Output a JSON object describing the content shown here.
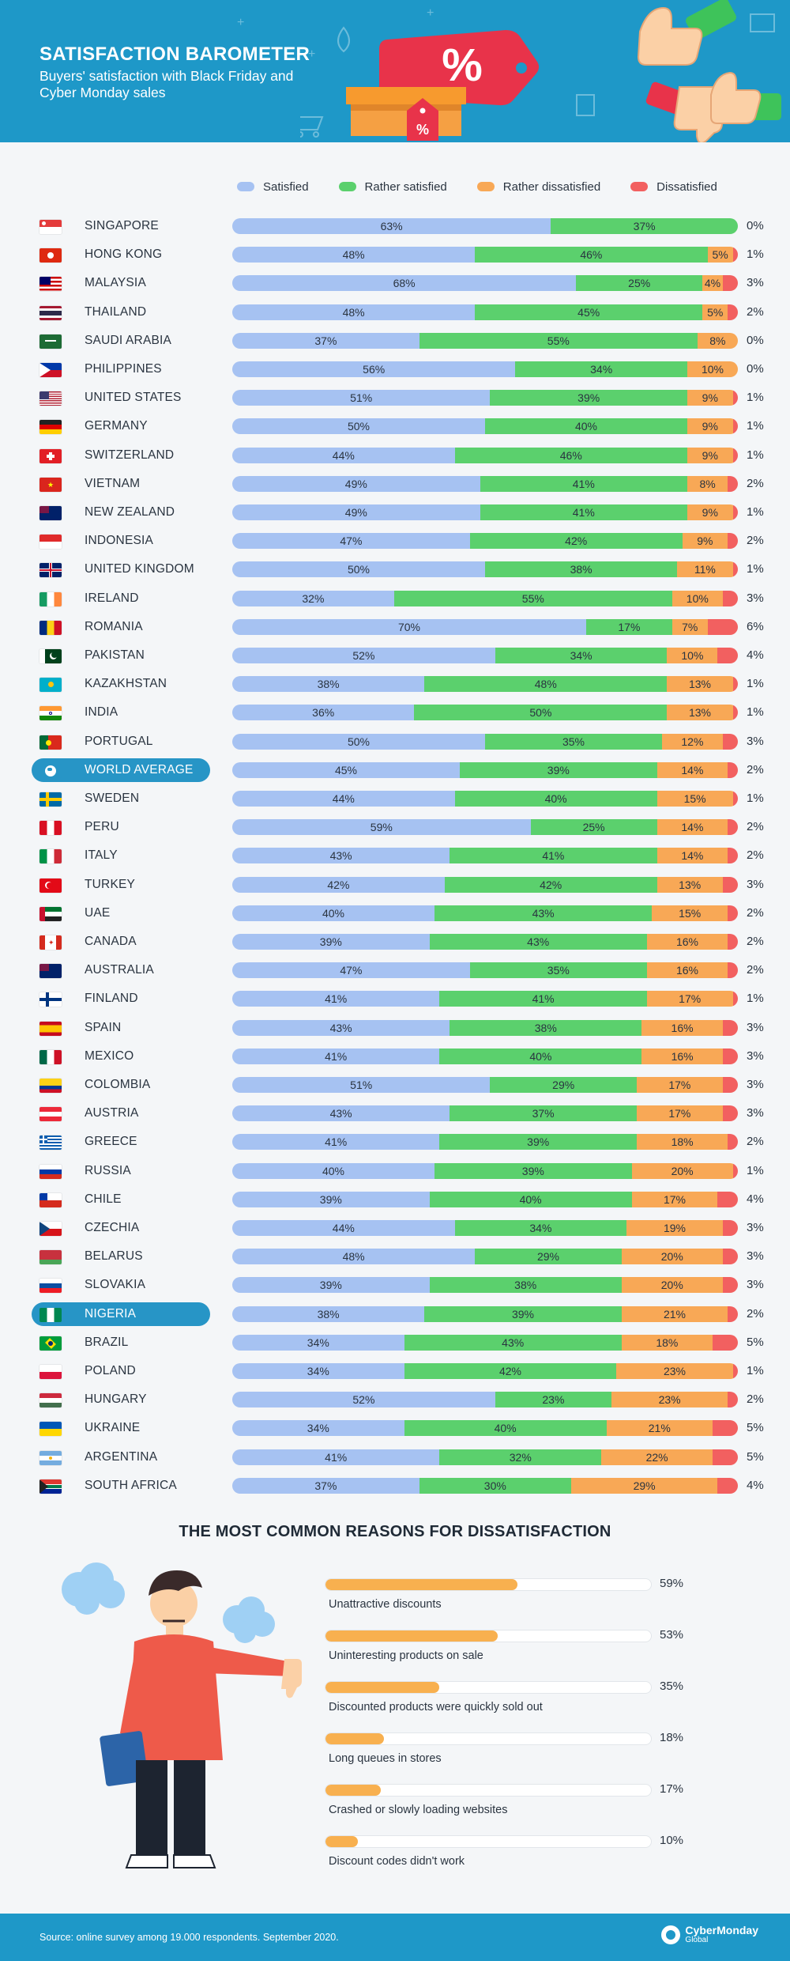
{
  "header": {
    "title": "SATISFACTION BAROMETER",
    "subtitle": "Buyers' satisfaction with Black Friday and Cyber Monday sales",
    "tag_symbol": "%"
  },
  "colors": {
    "header_bg": "#1e98c8",
    "satisfied": "#a6c2f2",
    "rather_satisfied": "#5bd06d",
    "rather_dissatisfied": "#f8a856",
    "dissatisfied": "#f26060",
    "highlight": "#2795c6",
    "reason_fill": "#f8b04f"
  },
  "chart_data": [
    {
      "type": "bar",
      "orientation": "horizontal",
      "stacked": "100%",
      "legend_position": "top",
      "series": [
        {
          "name": "Satisfied"
        },
        {
          "name": "Rather satisfied"
        },
        {
          "name": "Rather dissatisfied"
        },
        {
          "name": "Dissatisfied"
        }
      ],
      "rows": [
        {
          "country": "SINGAPORE",
          "flag": "sg",
          "values": [
            63,
            37,
            0,
            0
          ]
        },
        {
          "country": "HONG KONG",
          "flag": "hk",
          "values": [
            48,
            46,
            5,
            1
          ]
        },
        {
          "country": "MALAYSIA",
          "flag": "my",
          "values": [
            68,
            25,
            4,
            3
          ]
        },
        {
          "country": "THAILAND",
          "flag": "th",
          "values": [
            48,
            45,
            5,
            2
          ]
        },
        {
          "country": "SAUDI ARABIA",
          "flag": "sa",
          "values": [
            37,
            55,
            8,
            0
          ]
        },
        {
          "country": "PHILIPPINES",
          "flag": "ph",
          "values": [
            56,
            34,
            10,
            0
          ]
        },
        {
          "country": "UNITED STATES",
          "flag": "us",
          "values": [
            51,
            39,
            9,
            1
          ]
        },
        {
          "country": "GERMANY",
          "flag": "de",
          "values": [
            50,
            40,
            9,
            1
          ]
        },
        {
          "country": "SWITZERLAND",
          "flag": "ch",
          "values": [
            44,
            46,
            9,
            1
          ]
        },
        {
          "country": "VIETNAM",
          "flag": "vn",
          "values": [
            49,
            41,
            8,
            2
          ]
        },
        {
          "country": "NEW ZEALAND",
          "flag": "nz",
          "values": [
            49,
            41,
            9,
            1
          ]
        },
        {
          "country": "INDONESIA",
          "flag": "id",
          "values": [
            47,
            42,
            9,
            2
          ]
        },
        {
          "country": "UNITED KINGDOM",
          "flag": "gb",
          "values": [
            50,
            38,
            11,
            1
          ]
        },
        {
          "country": "IRELAND",
          "flag": "ie",
          "values": [
            32,
            55,
            10,
            3
          ]
        },
        {
          "country": "ROMANIA",
          "flag": "ro",
          "values": [
            70,
            17,
            7,
            6
          ]
        },
        {
          "country": "PAKISTAN",
          "flag": "pk",
          "values": [
            52,
            34,
            10,
            4
          ]
        },
        {
          "country": "KAZAKHSTAN",
          "flag": "kz",
          "values": [
            38,
            48,
            13,
            1
          ]
        },
        {
          "country": "INDIA",
          "flag": "in",
          "values": [
            36,
            50,
            13,
            1
          ]
        },
        {
          "country": "PORTUGAL",
          "flag": "pt",
          "values": [
            50,
            35,
            12,
            3
          ]
        },
        {
          "country": "WORLD AVERAGE",
          "flag": "world",
          "values": [
            45,
            39,
            14,
            2
          ],
          "highlight": true
        },
        {
          "country": "SWEDEN",
          "flag": "se",
          "values": [
            44,
            40,
            15,
            1
          ]
        },
        {
          "country": "PERU",
          "flag": "pe",
          "values": [
            59,
            25,
            14,
            2
          ]
        },
        {
          "country": "ITALY",
          "flag": "it",
          "values": [
            43,
            41,
            14,
            2
          ]
        },
        {
          "country": "TURKEY",
          "flag": "tr",
          "values": [
            42,
            42,
            13,
            3
          ]
        },
        {
          "country": "UAE",
          "flag": "ae",
          "values": [
            40,
            43,
            15,
            2
          ]
        },
        {
          "country": "CANADA",
          "flag": "ca",
          "values": [
            39,
            43,
            16,
            2
          ]
        },
        {
          "country": "AUSTRALIA",
          "flag": "au",
          "values": [
            47,
            35,
            16,
            2
          ]
        },
        {
          "country": "FINLAND",
          "flag": "fi",
          "values": [
            41,
            41,
            17,
            1
          ]
        },
        {
          "country": "SPAIN",
          "flag": "es",
          "values": [
            43,
            38,
            16,
            3
          ]
        },
        {
          "country": "MEXICO",
          "flag": "mx",
          "values": [
            41,
            40,
            16,
            3
          ]
        },
        {
          "country": "COLOMBIA",
          "flag": "co",
          "values": [
            51,
            29,
            17,
            3
          ]
        },
        {
          "country": "AUSTRIA",
          "flag": "at",
          "values": [
            43,
            37,
            17,
            3
          ]
        },
        {
          "country": "GREECE",
          "flag": "gr",
          "values": [
            41,
            39,
            18,
            2
          ]
        },
        {
          "country": "RUSSIA",
          "flag": "ru",
          "values": [
            40,
            39,
            20,
            1
          ]
        },
        {
          "country": "CHILE",
          "flag": "cl",
          "values": [
            39,
            40,
            17,
            4
          ]
        },
        {
          "country": "CZECHIA",
          "flag": "cz",
          "values": [
            44,
            34,
            19,
            3
          ]
        },
        {
          "country": "BELARUS",
          "flag": "by",
          "values": [
            48,
            29,
            20,
            3
          ]
        },
        {
          "country": "SLOVAKIA",
          "flag": "sk",
          "values": [
            39,
            38,
            20,
            3
          ]
        },
        {
          "country": "NIGERIA",
          "flag": "ng",
          "values": [
            38,
            39,
            21,
            2
          ],
          "highlight": true
        },
        {
          "country": "BRAZIL",
          "flag": "br",
          "values": [
            34,
            43,
            18,
            5
          ]
        },
        {
          "country": "POLAND",
          "flag": "pl",
          "values": [
            34,
            42,
            23,
            1
          ]
        },
        {
          "country": "HUNGARY",
          "flag": "hu",
          "values": [
            52,
            23,
            23,
            2
          ]
        },
        {
          "country": "UKRAINE",
          "flag": "ua",
          "values": [
            34,
            40,
            21,
            5
          ]
        },
        {
          "country": "ARGENTINA",
          "flag": "ar",
          "values": [
            41,
            32,
            22,
            5
          ]
        },
        {
          "country": "SOUTH AFRICA",
          "flag": "za",
          "values": [
            37,
            30,
            29,
            4
          ]
        }
      ]
    },
    {
      "type": "bar",
      "orientation": "horizontal",
      "title": "THE MOST COMMON REASONS FOR DISSATISFACTION",
      "xlim": [
        0,
        100
      ],
      "items": [
        {
          "label": "Unattractive discounts",
          "value": 59
        },
        {
          "label": "Uninteresting products on sale",
          "value": 53
        },
        {
          "label": "Discounted products were quickly sold out",
          "value": 35
        },
        {
          "label": "Long queues in stores",
          "value": 18
        },
        {
          "label": "Crashed or slowly loading websites",
          "value": 17
        },
        {
          "label": "Discount codes didn't work",
          "value": 10
        }
      ]
    }
  ],
  "footer": {
    "source": "Source: online survey among 19.000 respondents. September 2020.",
    "logo_name": "CyberMonday",
    "logo_sub": "Global"
  }
}
